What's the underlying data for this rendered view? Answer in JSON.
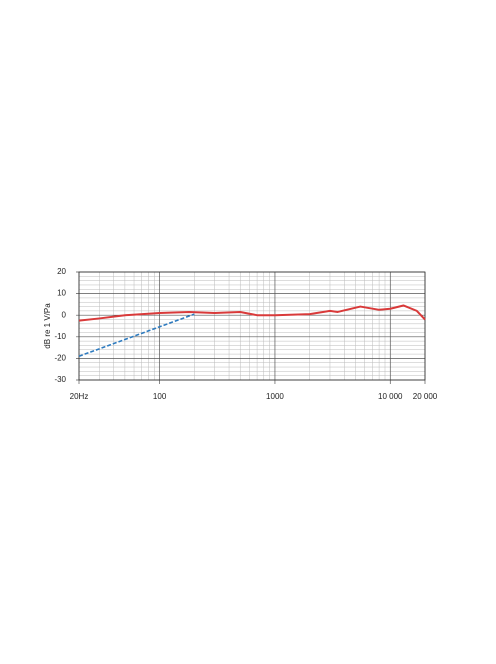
{
  "chart_data": {
    "type": "line",
    "y_label": "dB re 1 V/Pa",
    "log_x": true,
    "grid": true,
    "xlim": [
      20,
      20000
    ],
    "xticks": [
      {
        "value": 20,
        "label": "20Hz"
      },
      100,
      1000,
      {
        "value": 10000,
        "label": "10 000"
      },
      {
        "value": 20000,
        "label": "20 000"
      }
    ],
    "minor_xticks": [
      30,
      40,
      50,
      60,
      70,
      80,
      90,
      200,
      300,
      400,
      500,
      600,
      700,
      800,
      900,
      2000,
      3000,
      4000,
      5000,
      6000,
      7000,
      8000,
      9000
    ],
    "ylim": [
      -30,
      20
    ],
    "yticks": [
      -30,
      -20,
      -10,
      0,
      10,
      20
    ],
    "minor_yticks": [
      -28,
      -26,
      -24,
      -22,
      -18,
      -16,
      -14,
      -12,
      -8,
      -6,
      -4,
      -2,
      2,
      4,
      6,
      8,
      12,
      14,
      16,
      18
    ],
    "series": [
      {
        "color": "#d93a3a",
        "dashed": false,
        "x": [
          20,
          30,
          50,
          100,
          180,
          300,
          500,
          700,
          1000,
          2000,
          3000,
          3500,
          5500,
          8000,
          10000,
          13000,
          17000,
          20000
        ],
        "values": [
          -2.5,
          -1.5,
          0,
          1,
          1.5,
          1,
          1.5,
          0,
          0,
          0.5,
          2,
          1.5,
          4,
          2.5,
          3,
          4.5,
          2,
          -2
        ]
      },
      {
        "color": "#2e7bbf",
        "dashed": true,
        "x": [
          20,
          200
        ],
        "values": [
          -19,
          0.5
        ]
      }
    ]
  }
}
